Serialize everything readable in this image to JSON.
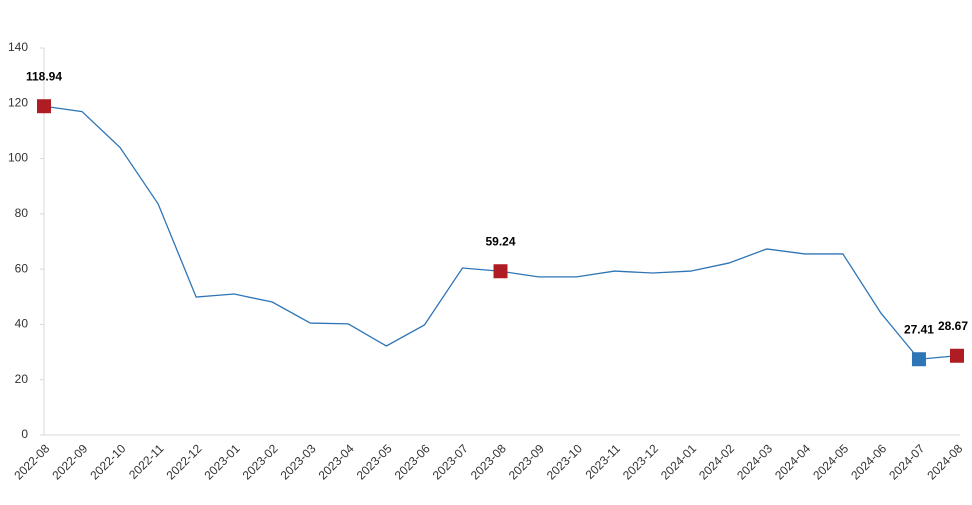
{
  "chart_data": {
    "type": "line",
    "categories": [
      "2022-08",
      "2022-09",
      "2022-10",
      "2022-11",
      "2022-12",
      "2023-01",
      "2023-02",
      "2023-03",
      "2023-04",
      "2023-05",
      "2023-06",
      "2023-07",
      "2023-08",
      "2023-09",
      "2023-10",
      "2023-11",
      "2023-12",
      "2024-01",
      "2024-02",
      "2024-03",
      "2024-04",
      "2024-05",
      "2024-06",
      "2024-07",
      "2024-08"
    ],
    "values": [
      118.94,
      117,
      104,
      83.6,
      49.9,
      51,
      48.1,
      40.5,
      40.2,
      32.2,
      39.8,
      60.4,
      59.24,
      57.2,
      57.2,
      59.3,
      58.6,
      59.3,
      62.2,
      67.3,
      65.5,
      65.5,
      44.1,
      27.41,
      28.67
    ],
    "color": "#2e75b6",
    "highlights": [
      {
        "index": 0,
        "color": "#b01c24"
      },
      {
        "index": 12,
        "color": "#b01c24"
      },
      {
        "index": 23,
        "color": "#2e75b6"
      },
      {
        "index": 24,
        "color": "#b01c24"
      }
    ],
    "ylim": [
      0,
      140
    ],
    "yticks": [
      0,
      20,
      40,
      60,
      80,
      100,
      120,
      140
    ],
    "grid": false
  }
}
